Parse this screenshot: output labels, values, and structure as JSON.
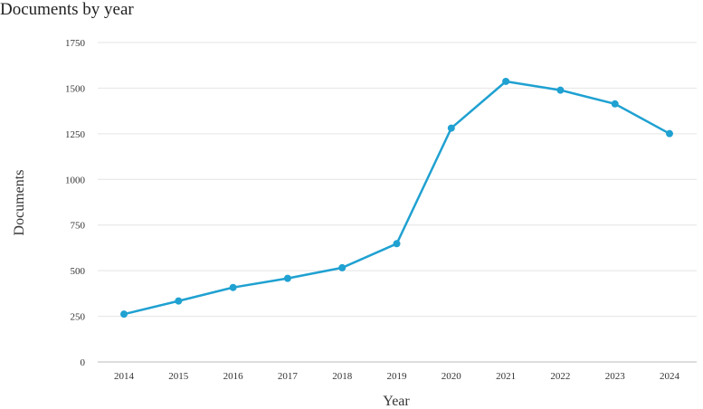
{
  "chart_data": {
    "type": "line",
    "title": "Documents by year",
    "xlabel": "Year",
    "ylabel": "Documents",
    "categories": [
      "2014",
      "2015",
      "2016",
      "2017",
      "2018",
      "2019",
      "2020",
      "2021",
      "2022",
      "2023",
      "2024"
    ],
    "series": [
      {
        "values": [
          262,
          334,
          408,
          458,
          516,
          648,
          1281,
          1537,
          1489,
          1414,
          1251
        ],
        "color": "#1fa1d1"
      }
    ],
    "ylim": [
      0,
      1750
    ],
    "yticks": [
      0,
      250,
      500,
      750,
      1000,
      1250,
      1500,
      1750
    ],
    "grid": true,
    "legend": "none",
    "colors": {
      "line": "#1fa1d1",
      "grid": "#e4e4e4",
      "axis": "#bbbbbb"
    }
  }
}
